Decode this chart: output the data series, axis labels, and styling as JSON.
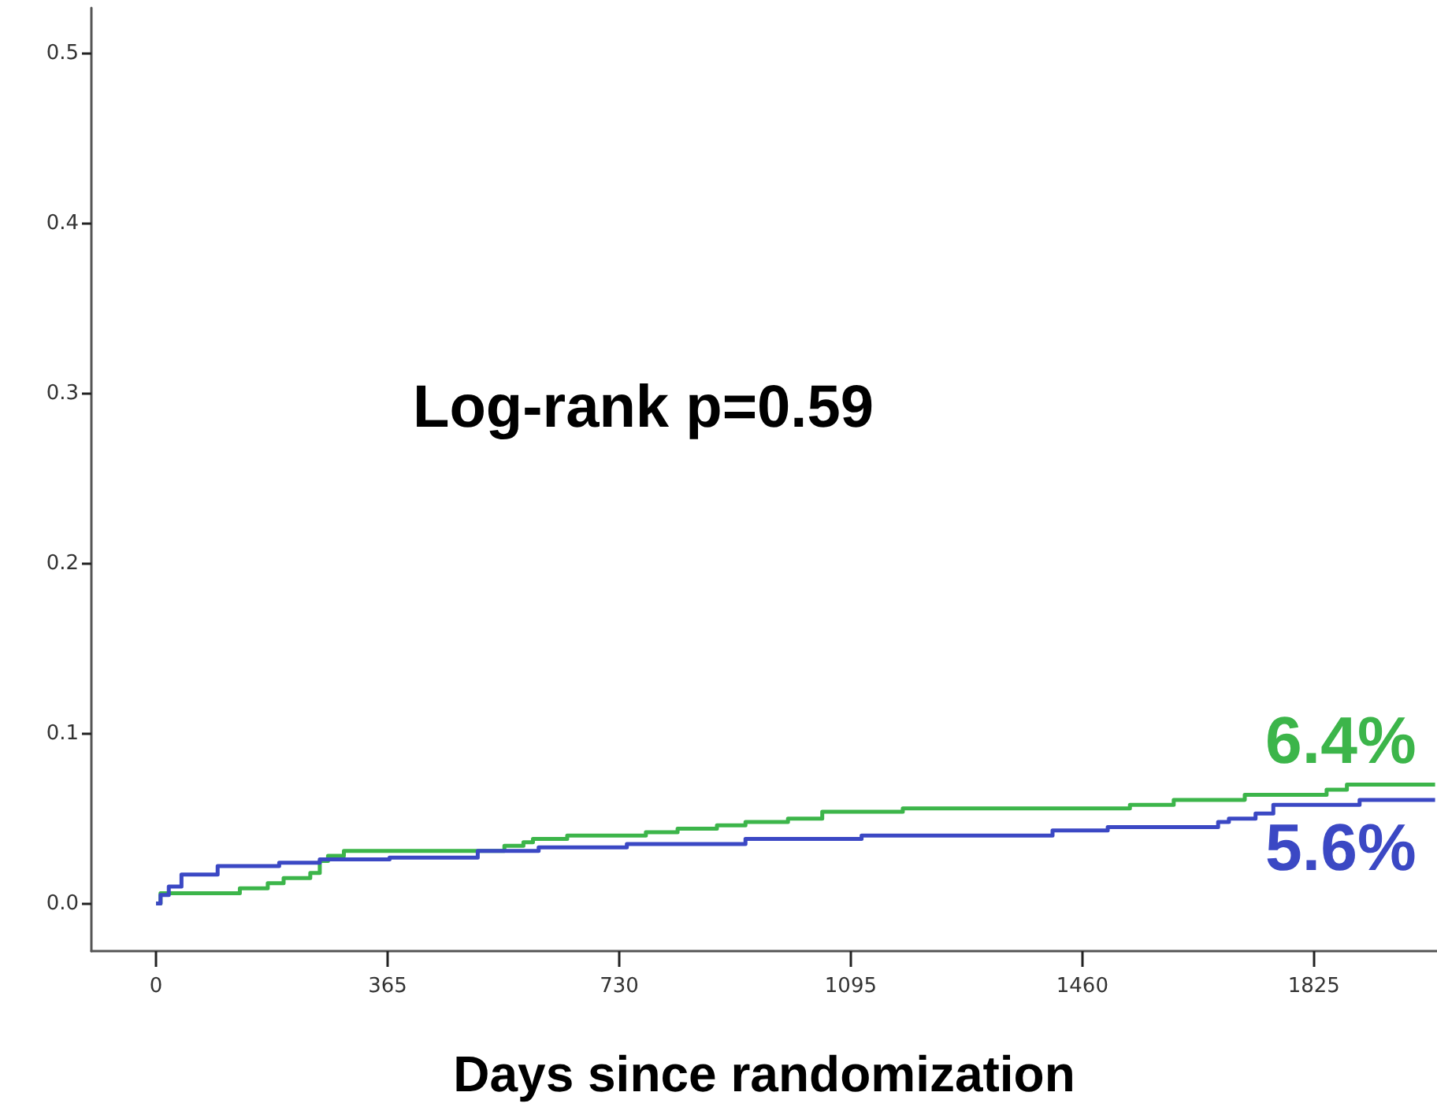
{
  "chart_data": {
    "type": "step",
    "xlabel": "Days since randomization",
    "xlim": [
      -102,
      2019
    ],
    "ylim": [
      -0.028,
      0.527
    ],
    "xticks": [
      0,
      365,
      730,
      1095,
      1460,
      1825
    ],
    "yticks": [
      {
        "value": 0,
        "label": "0.0"
      },
      {
        "value": 0.1,
        "label": "0.1"
      },
      {
        "value": 0.2,
        "label": "0.2"
      },
      {
        "value": 0.3,
        "label": "0.3"
      },
      {
        "value": 0.4,
        "label": "0.4"
      },
      {
        "value": 0.5,
        "label": "0.5"
      }
    ],
    "grid": false,
    "marker": "none",
    "line_style": "solid",
    "series": [
      {
        "color": "#3cb54a",
        "x": [
          0,
          7,
          132,
          176,
          201,
          243,
          258,
          271,
          296,
          549,
          579,
          594,
          648,
          772,
          822,
          884,
          929,
          996,
          1050,
          1177,
          1535,
          1604,
          1716,
          1845,
          1877,
          2016
        ],
        "values": [
          0,
          0.006,
          0.009,
          0.012,
          0.015,
          0.018,
          0.025,
          0.028,
          0.031,
          0.034,
          0.036,
          0.038,
          0.04,
          0.042,
          0.044,
          0.046,
          0.048,
          0.05,
          0.054,
          0.056,
          0.058,
          0.061,
          0.064,
          0.067,
          0.07,
          0.07
        ]
      },
      {
        "color": "#3b48c4",
        "x": [
          0,
          7,
          20,
          40,
          97,
          194,
          258,
          368,
          507,
          603,
          742,
          929,
          1112,
          1413,
          1500,
          1674,
          1691,
          1733,
          1761,
          1897,
          2016
        ],
        "values": [
          0,
          0.005,
          0.01,
          0.017,
          0.022,
          0.024,
          0.026,
          0.027,
          0.031,
          0.033,
          0.035,
          0.038,
          0.04,
          0.043,
          0.045,
          0.048,
          0.05,
          0.053,
          0.058,
          0.061,
          0.061
        ]
      }
    ],
    "annotations": [
      "Log-rank p=0.59",
      {
        "text": "6.4%",
        "x": 2016,
        "y": 0.07
      },
      {
        "text": "5.6%",
        "x": 2016,
        "y": 0.061
      }
    ]
  }
}
